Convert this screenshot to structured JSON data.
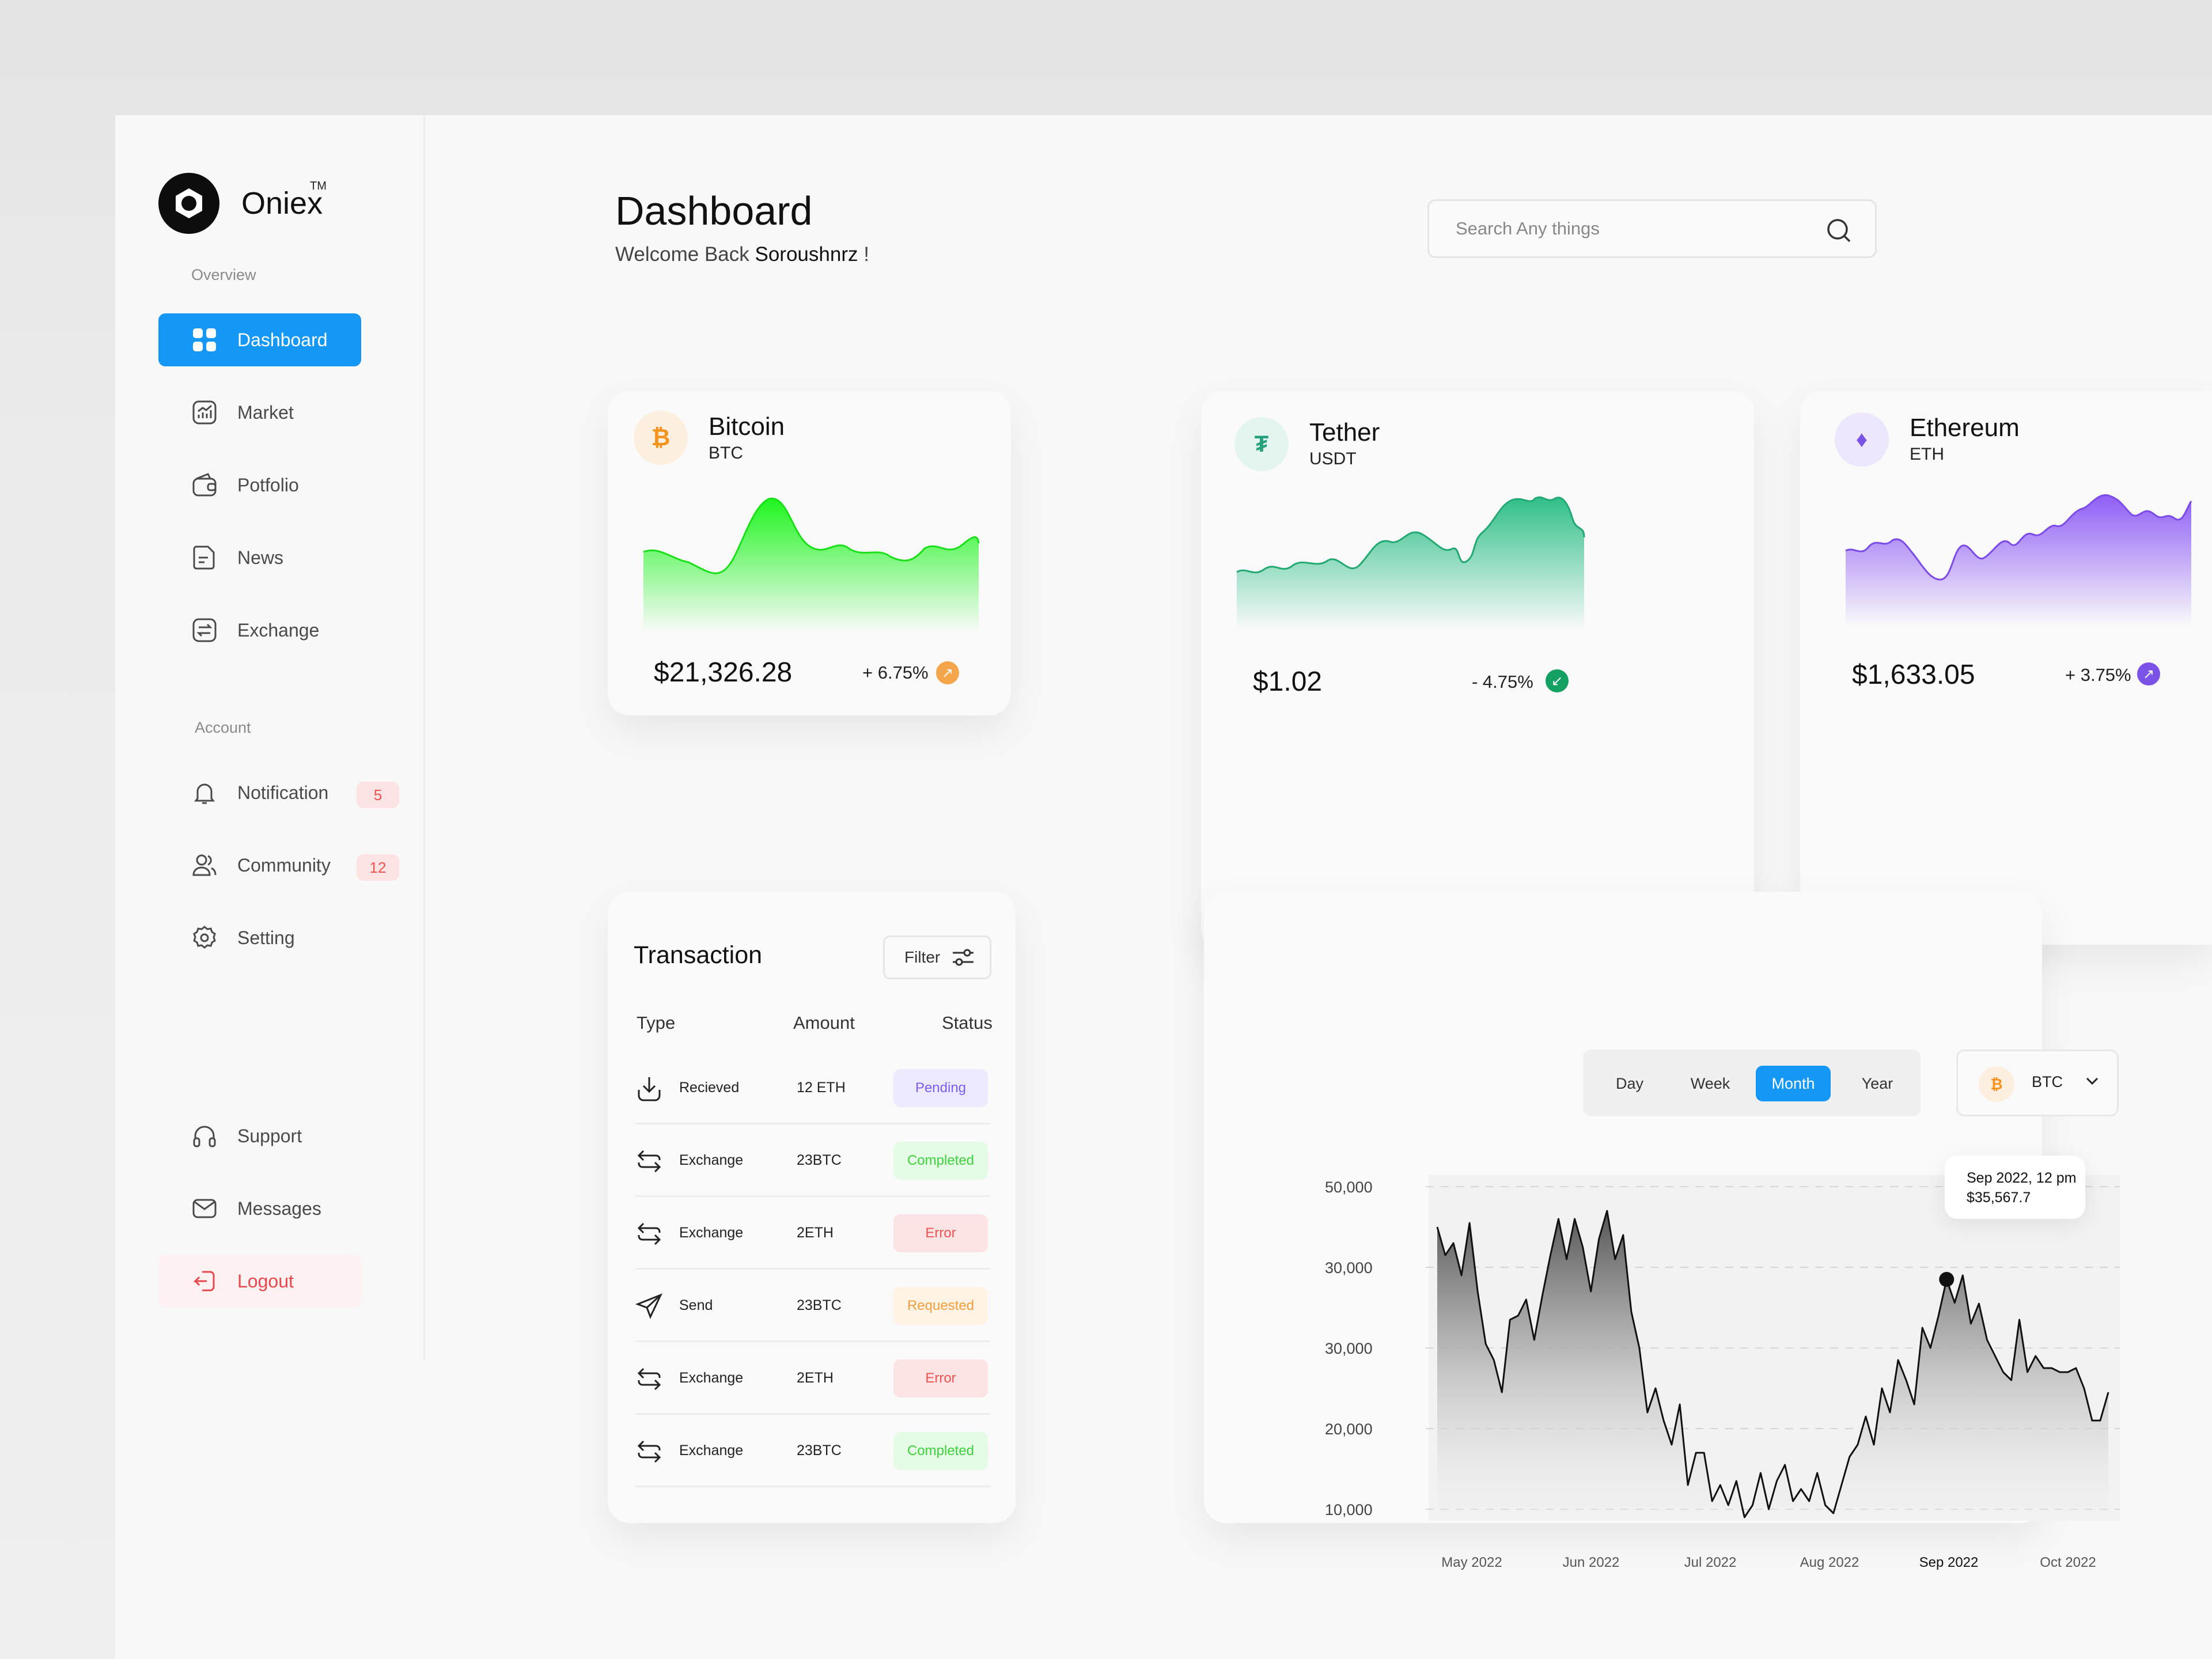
{
  "brand": {
    "name": "Oniex",
    "tm": "TM"
  },
  "sidebar": {
    "overview_label": "Overview",
    "account_label": "Account",
    "items": [
      {
        "label": "Dashboard"
      },
      {
        "label": "Market"
      },
      {
        "label": "Potfolio"
      },
      {
        "label": "News"
      },
      {
        "label": "Exchange"
      }
    ],
    "account_items": [
      {
        "label": "Notification",
        "badge": "5"
      },
      {
        "label": "Community",
        "badge": "12"
      },
      {
        "label": "Setting"
      }
    ],
    "bottom_items": [
      {
        "label": "Support"
      },
      {
        "label": "Messages"
      },
      {
        "label": "Logout"
      }
    ]
  },
  "header": {
    "title": "Dashboard",
    "welcome_prefix": "Welcome Back",
    "user_name": "Soroushnrz",
    "welcome_suffix": "!"
  },
  "search": {
    "placeholder": "Search Any things"
  },
  "coins": [
    {
      "name": "Bitcoin",
      "symbol": "BTC",
      "price": "$21,326.28",
      "change": "+ 6.75%",
      "color": "#f7931a",
      "chart_color": "#1ef51e"
    },
    {
      "name": "Tether",
      "symbol": "USDT",
      "price": "$1.02",
      "change": "- 4.75%",
      "color": "#26a17b",
      "chart_color": "#2fbf88"
    },
    {
      "name": "Ethereum",
      "symbol": "ETH",
      "price": "$1,633.05",
      "change": "+ 3.75%",
      "color": "#7b52e8",
      "chart_color": "#8f5ef5"
    }
  ],
  "transactions": {
    "title": "Transaction",
    "filter_label": "Filter",
    "columns": [
      "Type",
      "Amount",
      "Status"
    ],
    "rows": [
      {
        "type": "Recieved",
        "amount": "12 ETH",
        "status": "Pending",
        "icon": "download-icon"
      },
      {
        "type": "Exchange",
        "amount": "23BTC",
        "status": "Completed",
        "icon": "exchange-icon"
      },
      {
        "type": "Exchange",
        "amount": "2ETH",
        "status": "Error",
        "icon": "exchange-icon"
      },
      {
        "type": "Send",
        "amount": "23BTC",
        "status": "Requested",
        "icon": "send-icon"
      },
      {
        "type": "Exchange",
        "amount": "2ETH",
        "status": "Error",
        "icon": "exchange-icon"
      },
      {
        "type": "Exchange",
        "amount": "23BTC",
        "status": "Completed",
        "icon": "exchange-icon"
      }
    ]
  },
  "price_chart": {
    "periods": [
      "Day",
      "Week",
      "Month",
      "Year"
    ],
    "active_period": "Month",
    "coin": "BTC",
    "tooltip": {
      "date": "Sep 2022, 12 pm",
      "value": "$35,567.7"
    }
  },
  "chart_data": {
    "type": "area",
    "y_tick_labels": [
      "50,000",
      "30,000",
      "30,000",
      "20,000",
      "10,000"
    ],
    "x_tick_labels": [
      "May 2022",
      "Jun 2022",
      "Jul 2022",
      "Aug 2022",
      "Sep 2022",
      "Oct 2022"
    ],
    "highlighted_x": "Sep 2022",
    "grid": true,
    "grid_style": "dashed",
    "line_color": "#111111",
    "series": [
      {
        "values": [
          45000,
          41500,
          43000,
          39000,
          45500,
          37000,
          30500,
          28500,
          24500,
          33500,
          34000,
          36000,
          31000,
          36500,
          41500,
          46000,
          41000,
          46000,
          42500,
          37000,
          43500,
          47000,
          41000,
          44000,
          34500,
          30000,
          22000,
          25000,
          21000,
          18000,
          23000,
          13000,
          17000,
          17000,
          11000,
          13000,
          10500,
          13500,
          9000,
          10500,
          14500,
          10000,
          13500,
          15500,
          11000,
          12500,
          11000,
          14500,
          10500,
          9500,
          13000,
          16500,
          18000,
          21500,
          18000,
          25000,
          22000,
          28500,
          26000,
          23000,
          32500,
          30000,
          34000,
          38500,
          35600,
          39000,
          33000,
          35500,
          31000,
          29000,
          27000,
          26000,
          33500,
          27000,
          29000,
          27500,
          27500,
          27000,
          27000,
          27500,
          25000,
          21000,
          21000,
          24500
        ]
      }
    ]
  }
}
